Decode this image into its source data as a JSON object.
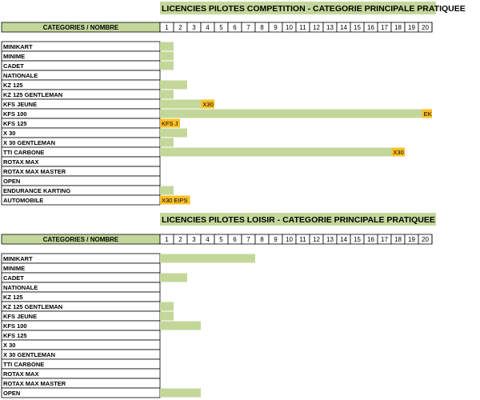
{
  "theme": {
    "header_green": "#c4d79b",
    "bar_green": "#c4d79b",
    "highlight_orange": "#fbbf28",
    "grid_color": "#000000"
  },
  "chart_data": [
    {
      "type": "bar",
      "orientation": "horizontal",
      "title": "LICENCIES PILOTES COMPETITION - CATEGORIE PRINCIPALE PRATIQUEE",
      "header_label": "CATEGORIES / NOMBRE",
      "x_ticks": [
        1,
        2,
        3,
        4,
        5,
        6,
        7,
        8,
        9,
        10,
        11,
        12,
        13,
        14,
        15,
        16,
        17,
        18,
        19,
        20
      ],
      "xlim": [
        0,
        20
      ],
      "categories": [
        "MINIKART",
        "MINIME",
        "CADET",
        "NATIONALE",
        "KZ 125",
        "KZ 125 GENTLEMAN",
        "KFS JEUNE",
        "KFS 100",
        "KFS 125",
        "X 30",
        "X 30 GENTLEMAN",
        "TTI CARBONE",
        "ROTAX MAX",
        "ROTAX MAX MASTER",
        "OPEN",
        "ENDURANCE KARTING",
        "AUTOMOBILE"
      ],
      "values": [
        1,
        1,
        1,
        0,
        2,
        1,
        4,
        20,
        1,
        2,
        1,
        18,
        0,
        0,
        0,
        1,
        2
      ],
      "labels": [
        "",
        "",
        "",
        "",
        "",
        "",
        "X30",
        "EK",
        "KFS J",
        "",
        "",
        "X30",
        "",
        "",
        "",
        "",
        "X30 EIPS"
      ]
    },
    {
      "type": "bar",
      "orientation": "horizontal",
      "title": "LICENCIES PILOTES LOISIR - CATEGORIE PRINCIPALE PRATIQUEE",
      "header_label": "CATEGORIES / NOMBRE",
      "x_ticks": [
        1,
        2,
        3,
        4,
        5,
        6,
        7,
        8,
        9,
        10,
        11,
        12,
        13,
        14,
        15,
        16,
        17,
        18,
        19,
        20
      ],
      "xlim": [
        0,
        20
      ],
      "categories": [
        "MINIKART",
        "MINIME",
        "CADET",
        "NATIONALE",
        "KZ 125",
        "KZ 125 GENTLEMAN",
        "KFS JEUNE",
        "KFS 100",
        "KFS 125",
        "X 30",
        "X 30 GENTLEMAN",
        "TTI CARBONE",
        "ROTAX MAX",
        "ROTAX MAX MASTER",
        "OPEN"
      ],
      "values": [
        7,
        0,
        2,
        0,
        0,
        1,
        1,
        3,
        0,
        0,
        0,
        0,
        0,
        0,
        3
      ],
      "labels": [
        "",
        "",
        "",
        "",
        "",
        "",
        "",
        "",
        "",
        "",
        "",
        "",
        "",
        "",
        ""
      ]
    }
  ]
}
